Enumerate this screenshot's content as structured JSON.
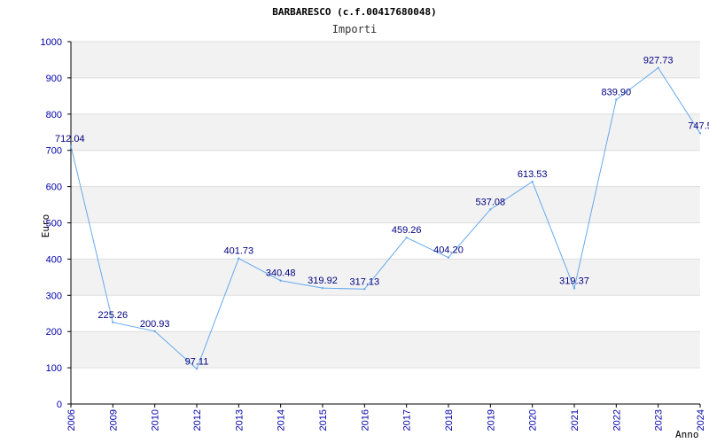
{
  "chart_data": {
    "type": "line",
    "title": "BARBARESCO (c.f.00417680048)",
    "subtitle": "Importi",
    "xlabel": "Anno",
    "ylabel": "Euro",
    "ylim": [
      0,
      1000
    ],
    "yticks": [
      "0",
      "100",
      "200",
      "300",
      "400",
      "500",
      "600",
      "700",
      "800",
      "900",
      "1000"
    ],
    "categories": [
      "2006",
      "2009",
      "2010",
      "2012",
      "2013",
      "2014",
      "2015",
      "2016",
      "2017",
      "2018",
      "2019",
      "2020",
      "2021",
      "2022",
      "2023",
      "2024"
    ],
    "values": [
      712.04,
      225.26,
      200.93,
      97.11,
      401.73,
      340.48,
      319.92,
      317.13,
      459.26,
      404.2,
      537.08,
      613.53,
      319.37,
      839.9,
      927.73,
      747.5
    ],
    "data_labels": [
      "712.04",
      "225.26",
      "200.93",
      "97.11",
      "401.73",
      "340.48",
      "319.92",
      "317.13",
      "459.26",
      "404.20",
      "537.08",
      "613.53",
      "319.37",
      "839.90",
      "927.73",
      "747.5"
    ],
    "grid": true,
    "colors": {
      "line": "#66aaee",
      "band": "#f2f2f2",
      "axis_text": "#0000aa",
      "label_text": "#000080"
    }
  }
}
